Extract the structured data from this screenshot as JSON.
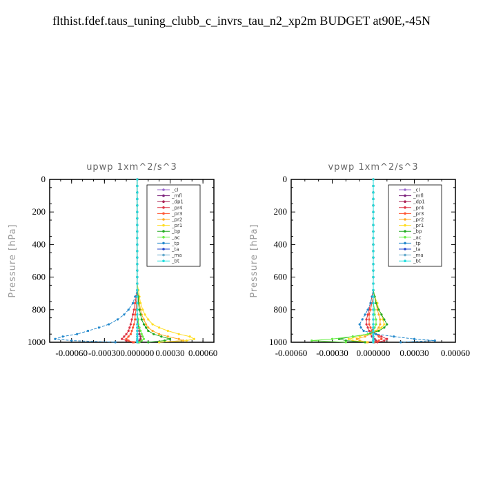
{
  "page_title": "flthist.fdef.taus_tuning_clubb_c_invrs_tau_n2_xp2m  BUDGET at90E,-45N",
  "chart_data": [
    {
      "type": "line",
      "title": "upwp   1xm^2/s^3",
      "ylabel": "Pressure [hPa]",
      "xlim": [
        -0.0008,
        0.0007
      ],
      "ylim": [
        1000,
        0
      ],
      "xticks": [
        -0.0006,
        -0.0003,
        0.0,
        0.0003,
        0.0006
      ],
      "xtick_labels": [
        "-0.00060",
        "-0.00030",
        "0.000000",
        "0.00030",
        "0.00060"
      ],
      "yticks": [
        0,
        200,
        400,
        600,
        800,
        1000
      ],
      "grid": false,
      "legend_position": "top-right",
      "levels": [
        0,
        40,
        80,
        120,
        160,
        200,
        240,
        280,
        320,
        360,
        400,
        440,
        480,
        520,
        560,
        600,
        640,
        680,
        720,
        760,
        800,
        830,
        860,
        890,
        910,
        930,
        950,
        965,
        980,
        990,
        1000
      ],
      "series": [
        {
          "name": "_cl",
          "color": "#9966cc",
          "values": [
            0,
            0,
            0,
            0,
            0,
            0,
            0,
            0,
            0,
            0,
            0,
            0,
            0,
            0,
            0,
            0,
            0,
            0,
            0,
            0,
            0,
            0,
            0,
            0,
            0,
            0,
            0,
            0,
            0,
            0,
            0
          ]
        },
        {
          "name": "_mfl",
          "color": "#7a1f7a",
          "values": [
            0,
            0,
            0,
            0,
            0,
            0,
            0,
            0,
            0,
            0,
            0,
            0,
            0,
            0,
            0,
            0,
            0,
            0,
            0,
            0,
            0,
            0,
            0,
            0,
            0,
            0,
            0,
            0,
            0,
            0,
            0
          ]
        },
        {
          "name": "_dp1",
          "color": "#aa2255",
          "values": [
            0,
            0,
            0,
            0,
            0,
            0,
            0,
            0,
            0,
            0,
            0,
            0,
            0,
            0,
            0,
            0,
            0,
            0,
            0,
            0,
            0,
            0,
            0,
            1e-05,
            1e-05,
            2e-05,
            2e-05,
            3e-05,
            3e-05,
            2e-05,
            1e-05
          ]
        },
        {
          "name": "_pr4",
          "color": "#dd3344",
          "values": [
            0,
            0,
            0,
            0,
            0,
            0,
            0,
            0,
            0,
            0,
            0,
            0,
            0,
            0,
            0,
            0,
            0,
            0,
            -1e-05,
            -2e-05,
            -3e-05,
            -4e-05,
            -5e-05,
            -6e-05,
            -7e-05,
            -8e-05,
            -0.0001,
            -0.00012,
            -0.00014,
            -0.0001,
            -4e-05
          ]
        },
        {
          "name": "_pr3",
          "color": "#ff5533",
          "values": [
            0,
            0,
            0,
            0,
            0,
            0,
            0,
            0,
            0,
            0,
            0,
            0,
            0,
            0,
            0,
            0,
            0,
            0,
            0,
            -1e-05,
            -1e-05,
            -2e-05,
            -2e-05,
            -3e-05,
            -4e-05,
            -5e-05,
            -6e-05,
            -8e-05,
            -0.0001,
            -8e-05,
            -3e-05
          ]
        },
        {
          "name": "_pr2",
          "color": "#ffaa22",
          "values": [
            0,
            0,
            0,
            0,
            0,
            0,
            0,
            0,
            0,
            0,
            0,
            0,
            0,
            0,
            0,
            0,
            0,
            0,
            1e-05,
            2e-05,
            3e-05,
            4e-05,
            6e-05,
            8e-05,
            0.0001,
            0.00014,
            0.0002,
            0.00028,
            0.00038,
            0.00042,
            0.0002
          ]
        },
        {
          "name": "_pr1",
          "color": "#ffdd22",
          "values": [
            0,
            0,
            0,
            0,
            0,
            0,
            0,
            0,
            0,
            0,
            0,
            0,
            0,
            0,
            0,
            0,
            0,
            1e-05,
            2e-05,
            3e-05,
            5e-05,
            7e-05,
            0.0001,
            0.00014,
            0.0002,
            0.00028,
            0.00038,
            0.00048,
            0.00052,
            0.00045,
            0.0002
          ]
        },
        {
          "name": "_bp",
          "color": "#22aa22",
          "values": [
            0,
            0,
            0,
            0,
            0,
            0,
            0,
            0,
            0,
            0,
            0,
            0,
            0,
            0,
            0,
            0,
            0,
            0,
            1e-05,
            1e-05,
            2e-05,
            3e-05,
            4e-05,
            6e-05,
            8e-05,
            0.0001,
            0.00015,
            0.00022,
            0.0003,
            0.00025,
            0.0001
          ]
        },
        {
          "name": "_ac",
          "color": "#66ee44",
          "values": [
            0,
            0,
            0,
            0,
            0,
            0,
            0,
            0,
            0,
            0,
            0,
            0,
            0,
            0,
            0,
            0,
            0,
            0,
            0,
            0,
            0,
            0,
            1e-05,
            1e-05,
            2e-05,
            3e-05,
            4e-05,
            5e-05,
            6e-05,
            4e-05,
            2e-05
          ]
        },
        {
          "name": "_tp",
          "color": "#2288cc",
          "values": [
            0,
            0,
            0,
            0,
            0,
            0,
            0,
            0,
            0,
            0,
            0,
            0,
            0,
            0,
            0,
            0,
            0,
            0,
            -2e-05,
            -4e-05,
            -8e-05,
            -0.00012,
            -0.00018,
            -0.00026,
            -0.00035,
            -0.00045,
            -0.00055,
            -0.00068,
            -0.00075,
            -0.0006,
            -0.0002
          ]
        },
        {
          "name": "_ta",
          "color": "#2244cc",
          "values": [
            0,
            0,
            0,
            0,
            0,
            0,
            0,
            0,
            0,
            0,
            0,
            0,
            0,
            0,
            0,
            0,
            0,
            0,
            0,
            0,
            0,
            0,
            0,
            0,
            0,
            0,
            0,
            0,
            0,
            0,
            0
          ]
        },
        {
          "name": "_ma",
          "color": "#66aacc",
          "values": [
            0,
            0,
            0,
            0,
            0,
            0,
            0,
            0,
            0,
            0,
            0,
            0,
            0,
            0,
            0,
            0,
            0,
            0,
            0,
            0,
            0,
            0,
            0,
            0,
            0,
            0,
            0,
            0,
            0,
            0,
            0
          ]
        },
        {
          "name": "_bt",
          "color": "#22dddd",
          "values": [
            0,
            0,
            0,
            0,
            0,
            0,
            0,
            0,
            0,
            0,
            0,
            0,
            0,
            0,
            0,
            0,
            0,
            0,
            0,
            0,
            0,
            0,
            0,
            0,
            0,
            0,
            0,
            0,
            0,
            0,
            0
          ]
        }
      ]
    },
    {
      "type": "line",
      "title": "vpwp   1xm^2/s^3",
      "ylabel": "Pressure [hPa]",
      "xlim": [
        -0.0006,
        0.0006
      ],
      "ylim": [
        1000,
        0
      ],
      "xticks": [
        -0.0006,
        -0.0003,
        0.0,
        0.0003,
        0.0006
      ],
      "xtick_labels": [
        "-0.00060",
        "-0.00030",
        "0.000000",
        "0.00030",
        "0.00060"
      ],
      "yticks": [
        0,
        200,
        400,
        600,
        800,
        1000
      ],
      "grid": false,
      "legend_position": "top-right",
      "levels": [
        0,
        40,
        80,
        120,
        160,
        200,
        240,
        280,
        320,
        360,
        400,
        440,
        480,
        520,
        560,
        600,
        640,
        680,
        720,
        760,
        800,
        830,
        860,
        890,
        910,
        930,
        950,
        965,
        980,
        990,
        1000
      ],
      "series": [
        {
          "name": "_cl",
          "color": "#9966cc",
          "values": [
            0,
            0,
            0,
            0,
            0,
            0,
            0,
            0,
            0,
            0,
            0,
            0,
            0,
            0,
            0,
            0,
            0,
            0,
            0,
            0,
            0,
            0,
            0,
            0,
            0,
            0,
            0,
            0,
            0,
            0,
            0
          ]
        },
        {
          "name": "_mfl",
          "color": "#7a1f7a",
          "values": [
            0,
            0,
            0,
            0,
            0,
            0,
            0,
            0,
            0,
            0,
            0,
            0,
            0,
            0,
            0,
            0,
            0,
            0,
            0,
            0,
            0,
            0,
            0,
            0,
            0,
            0,
            0,
            0,
            0,
            0,
            0
          ]
        },
        {
          "name": "_dp1",
          "color": "#aa2255",
          "values": [
            0,
            0,
            0,
            0,
            0,
            0,
            0,
            0,
            0,
            0,
            0,
            0,
            0,
            0,
            0,
            0,
            0,
            0,
            0,
            0,
            0,
            0,
            0,
            0,
            0,
            -1e-05,
            -2e-05,
            -1e-05,
            1e-05,
            2e-05,
            1e-05
          ]
        },
        {
          "name": "_pr4",
          "color": "#dd3344",
          "values": [
            0,
            0,
            0,
            0,
            0,
            0,
            0,
            0,
            0,
            0,
            0,
            0,
            0,
            0,
            0,
            0,
            0,
            0,
            -1e-05,
            -2e-05,
            -3e-05,
            -4e-05,
            -5e-05,
            -5e-05,
            -4e-05,
            -3e-05,
            2e-05,
            6e-05,
            0.0001,
            8e-05,
            3e-05
          ]
        },
        {
          "name": "_pr3",
          "color": "#ff5533",
          "values": [
            0,
            0,
            0,
            0,
            0,
            0,
            0,
            0,
            0,
            0,
            0,
            0,
            0,
            0,
            0,
            0,
            0,
            0,
            0,
            -1e-05,
            -2e-05,
            -3e-05,
            -3e-05,
            -3e-05,
            -2e-05,
            -1e-05,
            2e-05,
            4e-05,
            6e-05,
            4e-05,
            1e-05
          ]
        },
        {
          "name": "_pr2",
          "color": "#ffaa22",
          "values": [
            0,
            0,
            0,
            0,
            0,
            0,
            0,
            0,
            0,
            0,
            0,
            0,
            0,
            0,
            0,
            0,
            0,
            0,
            1e-05,
            2e-05,
            3e-05,
            4e-05,
            5e-05,
            5e-05,
            4e-05,
            2e-05,
            -2e-05,
            -6e-05,
            -0.00012,
            -0.0001,
            -4e-05
          ]
        },
        {
          "name": "_pr1",
          "color": "#ffdd22",
          "values": [
            0,
            0,
            0,
            0,
            0,
            0,
            0,
            0,
            0,
            0,
            0,
            0,
            0,
            0,
            0,
            0,
            0,
            0,
            1e-05,
            3e-05,
            4e-05,
            6e-05,
            7e-05,
            8e-05,
            6e-05,
            3e-05,
            -4e-05,
            -0.0001,
            -0.00018,
            -0.00015,
            -5e-05
          ]
        },
        {
          "name": "_bp",
          "color": "#22aa22",
          "values": [
            0,
            0,
            0,
            0,
            0,
            0,
            0,
            0,
            0,
            0,
            0,
            0,
            0,
            0,
            0,
            0,
            0,
            0,
            1e-05,
            2e-05,
            4e-05,
            6e-05,
            8e-05,
            0.0001,
            8e-05,
            4e-05,
            -4e-05,
            -0.00015,
            -0.00025,
            -0.0002,
            -6e-05
          ]
        },
        {
          "name": "_ac",
          "color": "#66ee44",
          "values": [
            0,
            0,
            0,
            0,
            0,
            0,
            0,
            0,
            0,
            0,
            0,
            0,
            0,
            0,
            0,
            0,
            0,
            0,
            0,
            0,
            1e-05,
            1e-05,
            2e-05,
            2e-05,
            1e-05,
            0,
            -4e-05,
            -0.00015,
            -0.0003,
            -0.00045,
            -0.0002
          ]
        },
        {
          "name": "_tp",
          "color": "#2288cc",
          "values": [
            0,
            0,
            0,
            0,
            0,
            0,
            0,
            0,
            0,
            0,
            0,
            0,
            0,
            0,
            0,
            0,
            0,
            0,
            -1e-05,
            -2e-05,
            -4e-05,
            -6e-05,
            -8e-05,
            -0.0001,
            -9e-05,
            -7e-05,
            2e-05,
            0.00015,
            0.0003,
            0.00045,
            0.0002
          ]
        },
        {
          "name": "_ta",
          "color": "#2244cc",
          "values": [
            0,
            0,
            0,
            0,
            0,
            0,
            0,
            0,
            0,
            0,
            0,
            0,
            0,
            0,
            0,
            0,
            0,
            0,
            0,
            0,
            0,
            0,
            0,
            0,
            0,
            0,
            0,
            0,
            0,
            0,
            0
          ]
        },
        {
          "name": "_ma",
          "color": "#66aacc",
          "values": [
            0,
            0,
            0,
            0,
            0,
            0,
            0,
            0,
            0,
            0,
            0,
            0,
            0,
            0,
            0,
            0,
            0,
            0,
            0,
            0,
            0,
            0,
            0,
            0,
            0,
            0,
            0,
            0,
            0,
            0,
            0
          ]
        },
        {
          "name": "_bt",
          "color": "#22dddd",
          "values": [
            0,
            0,
            0,
            0,
            0,
            0,
            0,
            0,
            0,
            0,
            0,
            0,
            0,
            0,
            0,
            0,
            0,
            0,
            0,
            0,
            0,
            0,
            0,
            0,
            0,
            0,
            0,
            0,
            0,
            0,
            0
          ]
        }
      ]
    }
  ]
}
